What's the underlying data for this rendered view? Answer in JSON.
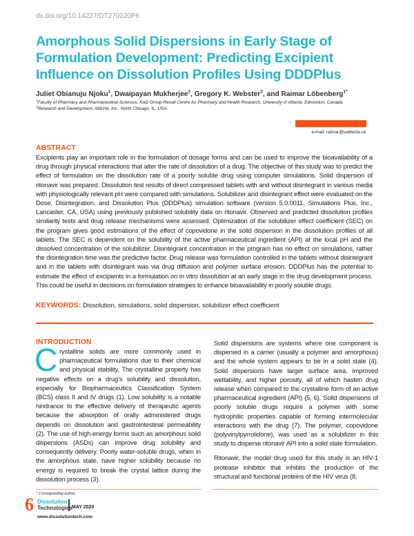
{
  "doi": "dx.doi.org/10.14227/DT270220P6",
  "title": "Amorphous Solid Dispersions in Early Stage of Formulation Development: Predicting Excipient Influence on Dissolution Profiles Using DDDPlus",
  "authors": [
    {
      "name": "Juliet Obianuju Njoku",
      "sup": "1",
      "sep": ", "
    },
    {
      "name": "Dwaipayan Mukherjee",
      "sup": "2",
      "sep": ", "
    },
    {
      "name": "Gregory K. Webster",
      "sup": "2",
      "sep": ", and "
    },
    {
      "name": "Raimar Löbenberg",
      "sup": "1*",
      "sep": ""
    }
  ],
  "affiliations": [
    {
      "sup": "1",
      "text": "Faculty of Pharmacy and Pharmaceutical Sciences, Katz Group-Rexall Centre for Pharmacy and Health Research, University of Alberta, Edmonton, Canada."
    },
    {
      "sup": "2",
      "text": "Research and Development, AbbVie, Inc., North Chicago, IL, USA."
    }
  ],
  "email": "e-mail: raimar@ualberta.ca",
  "abstract": {
    "heading": "ABSTRACT",
    "text": "Excipients play an important role in the formulation of dosage forms and can be used to improve the bioavailability of a drug through physical interactions that alter the rate of dissolution of a drug. The objective of this study was to predict the effect of formulation on the dissolution rate of a poorly soluble drug using computer simulations. Solid dispersion of ritonavir was prepared. Dissolution test results of direct compressed tablets with and without disintegrant in various media with physiologically relevant pH were compared with simulations. Solubilizer and disintegrant effect were evaluated on the Dose, Disintegration, and Dissolution Plus (DDDPlus) simulation software (version 5.0.0011, Simulations Plus, Inc., Lancaster, CA, USA) using previously published solubility data on ritonavir. Observed and predicted dissolution profiles similarity tests and drug release mechanisms were assessed. Optimization of the solubilizer effect coefficient (SEC) on the program gives good estimations of the effect of copovidone in the solid dispersion in the dissolution profiles of all tablets. The SEC is dependent on the solubility of the active pharmaceutical ingredient (API) at the local pH and the dissolved concentration of the solubilizer. Disintegrant concentration in the program has no effect on simulations, rather the disintegration time was the predictive factor. Drug release was formulation controlled in the tablets without disintegrant and in the tablets with disintegrant was via drug diffusion and polymer surface erosion. DDDPlus has the potential to estimate the effect of excipients in a formulation on in vitro dissolution at an early stage in the drug development process. This could be useful in decisions on formulation strategies to enhance bioavailability in poorly soluble drugs."
  },
  "keywords": {
    "label": "KEYWORDS:",
    "text": " Dissolution, simulations, solid dispersion, solubilizer effect coefficient"
  },
  "introduction": {
    "heading": "INTRODUCTION",
    "dropcap": "C",
    "left_text": "rystalline solids are more commonly used in pharmaceutical formulations due to their chemical and physical stability. The crystalline property has negative effects on a drug’s solubility and dissolution, especially for Biopharmaceutics Classification System (BCS) class II and IV drugs (1). Low solubility is a notable hindrance to the effective delivery of therapeutic agents because the absorption of orally administered drugs depends on dissolution and gastrointestinal permeability (2). The use of high-energy forms such as amorphous solid dispersions (ASDs) can improve drug solubility and consequently delivery. Poorly water-soluble drugs, when in the amorphous state, have higher solubility because no energy is required to break the crystal lattice during the dissolution process (3).",
    "right_paragraphs": [
      "Solid dispersions are systems where one component is dispersed in a carrier (usually a polymer and amorphous) and the whole system appears to be in a solid state (4). Solid dispersions have larger surface area, improved wettability, and higher porosity, all of which hasten drug release when compared to the crystalline form of an active pharmaceutical ingredient (API) (5, 6). Solid dispersions of poorly soluble drugs require a polymer with some hydrophilic properties capable of forming intermolecular interactions with the drug (7). The polymer, copovidone (polyvinylpyrrolidone), was used as a solubilizer in this study to disperse ritonavir API into a solid state formulation.",
      "Ritonavir, the model drug used for this study is an HIV-1 protease inhibitor that inhibits the production of the structural and functional proteins of the HIV virus (8,"
    ]
  },
  "footer": {
    "corresponding": "* Corresponding author.",
    "page_number": "6",
    "logo_line1": "Dissolution",
    "logo_line2": "Technologies",
    "issue": "MAY 2020",
    "website": "www.dissolutiontech.com"
  },
  "colors": {
    "title": "#1fb8c9",
    "accent": "#ff4f12"
  }
}
